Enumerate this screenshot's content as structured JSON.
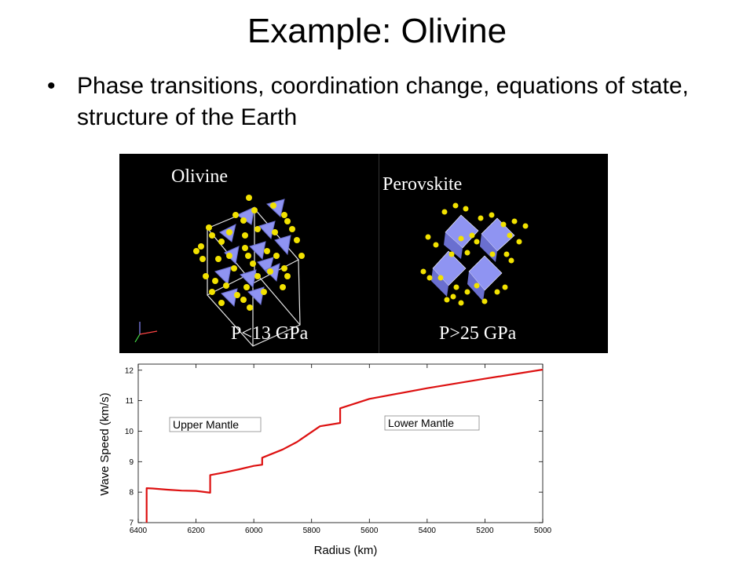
{
  "slide": {
    "title": "Example:  Olivine",
    "bullets": [
      "Phase transitions, coordination change, equations of state, structure of the Earth"
    ]
  },
  "crystal_figure": {
    "left": {
      "name": "Olivine",
      "pressure": "P<13 GPa"
    },
    "right": {
      "name": "Perovskite",
      "pressure": "P>25 GPa"
    },
    "colors": {
      "background": "#000000",
      "atom": "#f2e200",
      "polyhedron": "#8f94f2"
    }
  },
  "chart_data": {
    "type": "line",
    "title": "",
    "xlabel": "Radius (km)",
    "ylabel": "Wave Speed (km/s)",
    "xlim": [
      6400,
      5000
    ],
    "ylim": [
      7,
      12.2
    ],
    "x_ticks": [
      6400,
      6200,
      6000,
      5800,
      5600,
      5400,
      5200,
      5000
    ],
    "y_ticks": [
      7,
      8,
      9,
      10,
      11,
      12
    ],
    "grid": false,
    "series": [
      {
        "color": "#dd1111",
        "points": [
          [
            6371,
            7.0
          ],
          [
            6371,
            8.13
          ],
          [
            6350,
            8.12
          ],
          [
            6300,
            8.08
          ],
          [
            6250,
            8.05
          ],
          [
            6200,
            8.04
          ],
          [
            6151,
            7.98
          ],
          [
            6151,
            8.56
          ],
          [
            6100,
            8.65
          ],
          [
            6050,
            8.75
          ],
          [
            6000,
            8.86
          ],
          [
            5971,
            8.9
          ],
          [
            5971,
            9.13
          ],
          [
            5900,
            9.4
          ],
          [
            5850,
            9.65
          ],
          [
            5771,
            10.16
          ],
          [
            5701,
            10.27
          ],
          [
            5701,
            10.75
          ],
          [
            5600,
            11.06
          ],
          [
            5400,
            11.41
          ],
          [
            5200,
            11.72
          ],
          [
            5000,
            12.02
          ]
        ]
      }
    ],
    "annotations": [
      "Upper Mantle",
      "Lower Mantle"
    ]
  }
}
